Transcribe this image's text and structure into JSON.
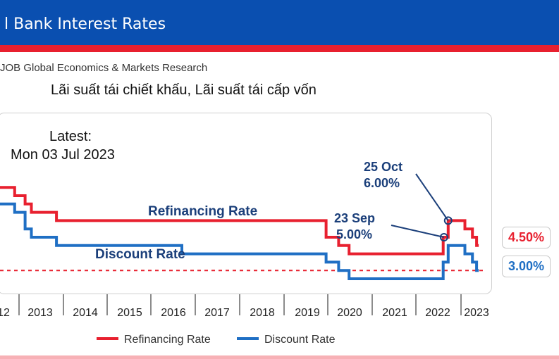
{
  "header": {
    "title": "l Bank Interest Rates",
    "source": "JOB Global Economics & Markets Research",
    "banner_color": "#0a4fb0",
    "stripe_color": "#e8202f"
  },
  "chart_data": {
    "type": "line",
    "title": "Lãi suất tái chiết khấu, Lãi suất tái cấp vốn",
    "latest_label": "Latest:",
    "latest_date": "Mon 03 Jul 2023",
    "x_ticks": [
      "12",
      "2013",
      "2014",
      "2015",
      "2016",
      "2017",
      "2018",
      "2019",
      "2020",
      "2021",
      "2022",
      "2023"
    ],
    "xlim": [
      2012.1,
      2023.65
    ],
    "ylim": [
      2.5,
      10.0
    ],
    "grid": false,
    "legend_position": "bottom",
    "reference_line": {
      "y": 3.0,
      "color": "#e8202f",
      "style": "dashed"
    },
    "series": [
      {
        "name": "Refinancing Rate",
        "color": "#e8202f",
        "step": true,
        "points": [
          [
            2012.1,
            8.0
          ],
          [
            2012.45,
            8.0
          ],
          [
            2012.45,
            7.5
          ],
          [
            2012.7,
            7.5
          ],
          [
            2012.7,
            7.0
          ],
          [
            2012.85,
            7.0
          ],
          [
            2012.85,
            6.5
          ],
          [
            2013.45,
            6.5
          ],
          [
            2013.45,
            6.0
          ],
          [
            2019.9,
            6.0
          ],
          [
            2019.9,
            5.0
          ],
          [
            2020.2,
            5.0
          ],
          [
            2020.2,
            4.5
          ],
          [
            2020.45,
            4.5
          ],
          [
            2020.45,
            4.0
          ],
          [
            2022.7,
            4.0
          ],
          [
            2022.7,
            5.0
          ],
          [
            2022.82,
            5.0
          ],
          [
            2022.82,
            6.0
          ],
          [
            2023.22,
            6.0
          ],
          [
            2023.22,
            5.5
          ],
          [
            2023.4,
            5.5
          ],
          [
            2023.4,
            5.0
          ],
          [
            2023.5,
            5.0
          ],
          [
            2023.5,
            4.5
          ],
          [
            2023.55,
            4.5
          ]
        ],
        "label": "Refinancing Rate",
        "end_value_label": "4.50%"
      },
      {
        "name": "Discount Rate",
        "color": "#1f6fc4",
        "step": true,
        "points": [
          [
            2012.1,
            7.0
          ],
          [
            2012.45,
            7.0
          ],
          [
            2012.45,
            6.5
          ],
          [
            2012.7,
            6.5
          ],
          [
            2012.7,
            5.5
          ],
          [
            2012.85,
            5.5
          ],
          [
            2012.85,
            5.0
          ],
          [
            2013.45,
            5.0
          ],
          [
            2013.45,
            4.5
          ],
          [
            2016.45,
            4.5
          ],
          [
            2016.45,
            4.0
          ],
          [
            2019.9,
            4.0
          ],
          [
            2019.9,
            3.5
          ],
          [
            2020.2,
            3.5
          ],
          [
            2020.2,
            3.0
          ],
          [
            2020.45,
            3.0
          ],
          [
            2020.45,
            2.5
          ],
          [
            2022.7,
            2.5
          ],
          [
            2022.7,
            3.5
          ],
          [
            2022.82,
            3.5
          ],
          [
            2022.82,
            4.5
          ],
          [
            2023.22,
            4.5
          ],
          [
            2023.22,
            4.0
          ],
          [
            2023.4,
            4.0
          ],
          [
            2023.4,
            3.5
          ],
          [
            2023.5,
            3.5
          ],
          [
            2023.5,
            3.0
          ],
          [
            2023.55,
            3.0
          ]
        ],
        "label": "Discount Rate",
        "end_value_label": "3.00%"
      }
    ],
    "annotations": [
      {
        "text_line1": "25 Oct",
        "text_line2": "6.00%",
        "point": [
          2022.82,
          6.0
        ],
        "color": "#1b3f7a"
      },
      {
        "text_line1": "23 Sep",
        "text_line2": "5.00%",
        "point": [
          2022.72,
          5.0
        ],
        "color": "#1b3f7a"
      }
    ]
  }
}
